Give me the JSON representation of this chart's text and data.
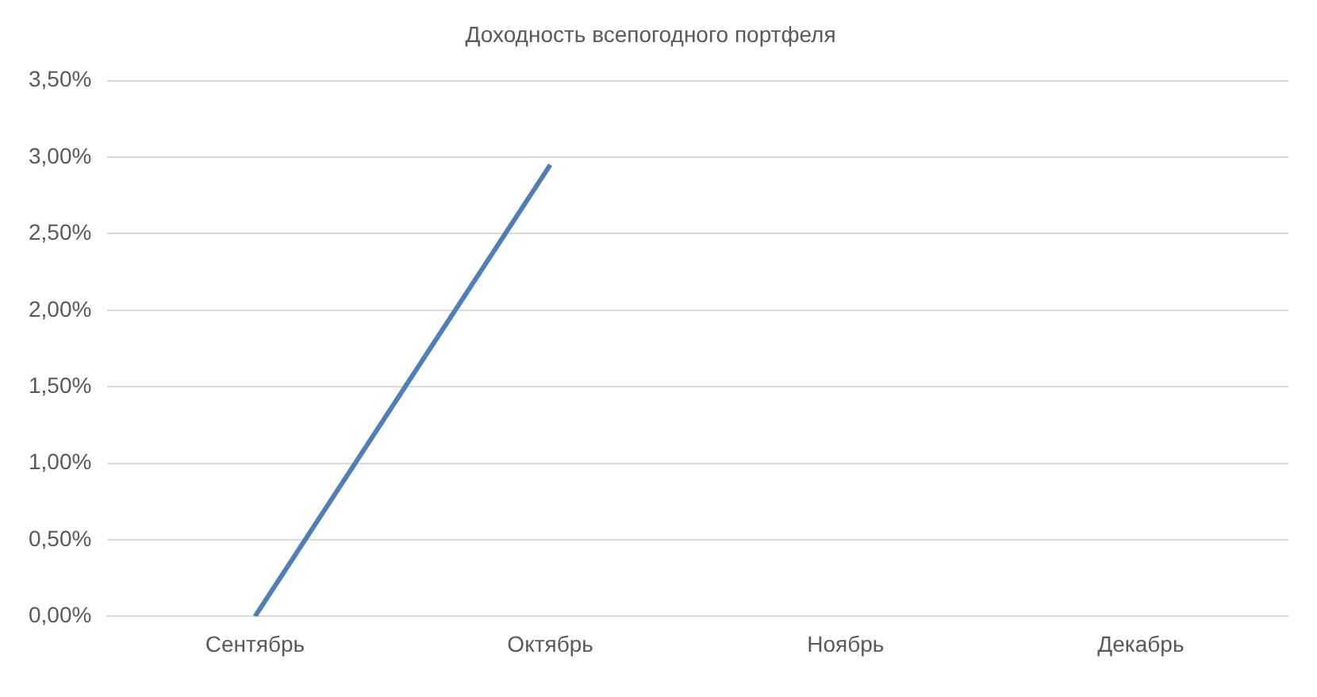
{
  "chart_data": {
    "type": "line",
    "title": "Доходность всепогодного портфеля",
    "categories": [
      "Сентябрь",
      "Октябрь",
      "Ноябрь",
      "Декабрь"
    ],
    "series": [
      {
        "color": "#4f7fb6",
        "values": [
          0,
          2.95,
          null,
          null
        ]
      }
    ],
    "ylim": [
      0,
      3.5
    ],
    "yticks": [
      {
        "value": 0,
        "label": "0,00%"
      },
      {
        "value": 0.5,
        "label": "0,50%"
      },
      {
        "value": 1,
        "label": "1,00%"
      },
      {
        "value": 1.5,
        "label": "1,50%"
      },
      {
        "value": 2,
        "label": "2,00%"
      },
      {
        "value": 2.5,
        "label": "2,50%"
      },
      {
        "value": 3,
        "label": "3,00%"
      },
      {
        "value": 3.5,
        "label": "3,50%"
      }
    ],
    "grid": "y",
    "legend": false,
    "marker": "none",
    "line_style": "solid"
  }
}
